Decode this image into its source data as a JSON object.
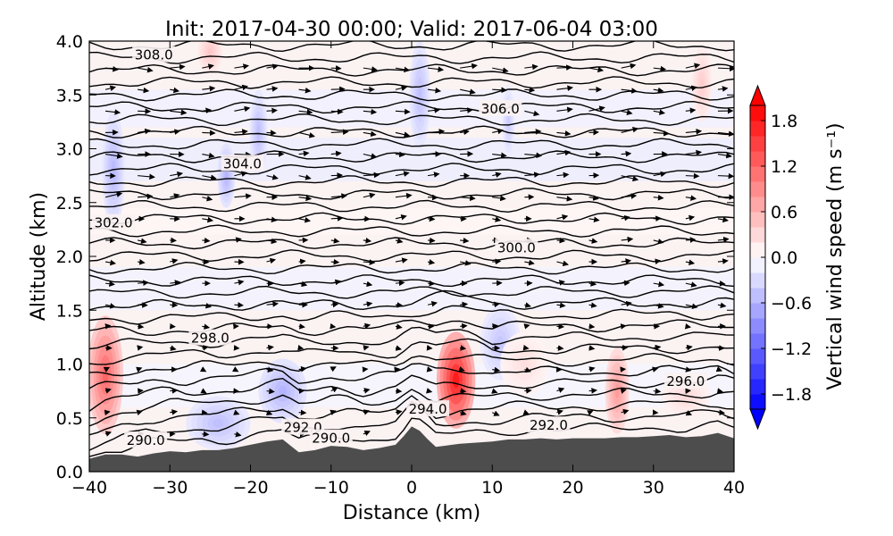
{
  "chart_data": {
    "type": "contour",
    "title": "Init: 2017-04-30 00:00; Valid: 2017-06-04 03:00",
    "xlabel": "Distance (km)",
    "ylabel": "Altitude (km)",
    "xlim": [
      -40,
      40
    ],
    "ylim": [
      0,
      4
    ],
    "x_ticks": [
      -40,
      -30,
      -20,
      -10,
      0,
      10,
      20,
      30,
      40
    ],
    "x_tick_labels": [
      "−40",
      "−30",
      "−20",
      "−10",
      "0",
      "10",
      "20",
      "30",
      "40"
    ],
    "y_ticks": [
      0,
      0.5,
      1,
      1.5,
      2,
      2.5,
      3,
      3.5,
      4
    ],
    "y_tick_labels": [
      "0.0",
      "0.5",
      "1.0",
      "1.5",
      "2.0",
      "2.5",
      "3.0",
      "3.5",
      "4.0"
    ],
    "fill_variable": "vertical wind speed",
    "colorbar": {
      "label": "Vertical wind speed (m s⁻¹)",
      "range": [
        -2.0,
        2.0
      ],
      "extend": "both",
      "levels": [
        -2.0,
        -1.8,
        -1.6,
        -1.4,
        -1.2,
        -1.0,
        -0.8,
        -0.6,
        -0.4,
        -0.2,
        0.0,
        0.2,
        0.4,
        0.6,
        0.8,
        1.0,
        1.2,
        1.4,
        1.6,
        1.8,
        2.0
      ],
      "ticks": [
        -1.8,
        -1.2,
        -0.6,
        0.0,
        0.6,
        1.2,
        1.8
      ],
      "tick_labels": [
        "−1.8",
        "−1.2",
        "−0.6",
        "0.0",
        "0.6",
        "1.2",
        "1.8"
      ],
      "cmap": "bwr",
      "color_low": "#0000ff",
      "color_mid": "#ffffff",
      "color_high": "#ff0000"
    },
    "contour_variable": "potential temperature (K)",
    "contour_labels": [
      {
        "text": "308.0",
        "x": -32,
        "y": 3.87
      },
      {
        "text": "306.0",
        "x": 11,
        "y": 3.37
      },
      {
        "text": "304.0",
        "x": -21,
        "y": 2.86
      },
      {
        "text": "302.0",
        "x": -37,
        "y": 2.31
      },
      {
        "text": "300.0",
        "x": 13,
        "y": 2.08
      },
      {
        "text": "298.0",
        "x": -25,
        "y": 1.24
      },
      {
        "text": "296.0",
        "x": 34,
        "y": 0.84
      },
      {
        "text": "294.0",
        "x": 2,
        "y": 0.58
      },
      {
        "text": "292.0",
        "x": -13.5,
        "y": 0.41
      },
      {
        "text": "292.0",
        "x": 17,
        "y": 0.43
      },
      {
        "text": "290.0",
        "x": -10,
        "y": 0.31
      },
      {
        "text": "290.0",
        "x": -33,
        "y": 0.29
      }
    ],
    "terrain": {
      "x": [
        -40,
        -38,
        -36,
        -34,
        -32,
        -30,
        -28,
        -26,
        -24,
        -22,
        -20,
        -18,
        -16,
        -14,
        -12,
        -10,
        -8,
        -6,
        -4,
        -2,
        -1,
        0,
        1,
        2,
        3,
        4,
        6,
        8,
        10,
        12,
        14,
        16,
        18,
        20,
        22,
        24,
        26,
        28,
        30,
        32,
        34,
        36,
        38,
        40
      ],
      "y": [
        0.12,
        0.16,
        0.16,
        0.14,
        0.17,
        0.19,
        0.18,
        0.2,
        0.2,
        0.22,
        0.25,
        0.28,
        0.3,
        0.18,
        0.2,
        0.24,
        0.23,
        0.2,
        0.22,
        0.25,
        0.33,
        0.42,
        0.38,
        0.3,
        0.23,
        0.24,
        0.26,
        0.27,
        0.28,
        0.3,
        0.3,
        0.31,
        0.3,
        0.31,
        0.31,
        0.31,
        0.32,
        0.32,
        0.33,
        0.34,
        0.32,
        0.33,
        0.36,
        0.31
      ],
      "color": "#4d4d4d"
    },
    "w_features": [
      {
        "x": -38,
        "y": 0.9,
        "sx": 2.2,
        "sy": 0.55,
        "w": 1.2
      },
      {
        "x": 5.5,
        "y": 0.85,
        "sx": 2.4,
        "sy": 0.45,
        "w": 1.8
      },
      {
        "x": 25.5,
        "y": 0.75,
        "sx": 1.5,
        "sy": 0.4,
        "w": 0.8
      },
      {
        "x": -24,
        "y": 0.45,
        "sx": 4,
        "sy": 0.25,
        "w": -0.5
      },
      {
        "x": -16,
        "y": 0.75,
        "sx": 3,
        "sy": 0.3,
        "w": -0.6
      },
      {
        "x": -37,
        "y": 2.8,
        "sx": 1.4,
        "sy": 0.55,
        "w": -0.55
      },
      {
        "x": -23,
        "y": 2.75,
        "sx": 1.1,
        "sy": 0.3,
        "w": -0.6
      },
      {
        "x": -19,
        "y": 3.15,
        "sx": 1.1,
        "sy": 0.4,
        "w": -0.5
      },
      {
        "x": 1,
        "y": 3.5,
        "sx": 1.3,
        "sy": 0.5,
        "w": -0.5
      },
      {
        "x": 11,
        "y": 1.2,
        "sx": 2.5,
        "sy": 0.35,
        "w": -0.45
      },
      {
        "x": 12,
        "y": 3.25,
        "sx": 0.8,
        "sy": 0.35,
        "w": -0.4
      },
      {
        "x": -25,
        "y": 3.9,
        "sx": 1.5,
        "sy": 0.2,
        "w": 0.45
      },
      {
        "x": 36,
        "y": 3.6,
        "sx": 1.3,
        "sy": 0.35,
        "w": 0.4
      },
      {
        "x": 34,
        "y": 0.7,
        "sx": 3,
        "sy": 0.2,
        "w": 0.3
      },
      {
        "x": 14,
        "y": 1.0,
        "sx": 3,
        "sy": 0.3,
        "w": 0.25
      }
    ],
    "wind_vectors": "horizontal wind quiver arrows, predominantly eastward"
  }
}
